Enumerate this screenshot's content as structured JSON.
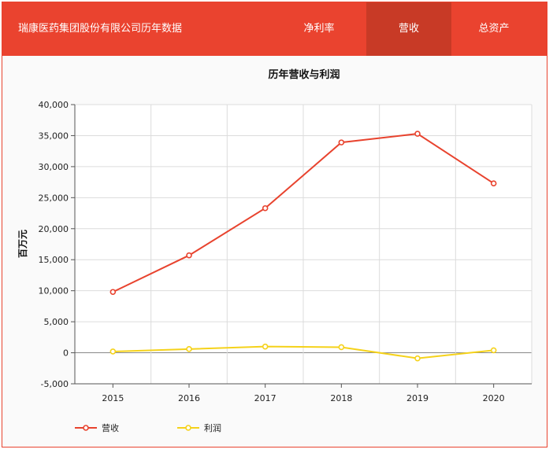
{
  "header": {
    "title": "瑞康医药集团股份有限公司历年数据",
    "tabs": [
      {
        "label": "净利率",
        "active": false
      },
      {
        "label": "营收",
        "active": true
      },
      {
        "label": "总资产",
        "active": false
      }
    ]
  },
  "colors": {
    "header_bg": "#ea432f",
    "active_tab_bg": "#c83a26",
    "revenue_line": "#e8432e",
    "profit_line": "#f5d21a"
  },
  "chart_data": {
    "type": "line",
    "title": "历年营收与利润",
    "xlabel": "",
    "ylabel": "百万元",
    "categories": [
      "2015",
      "2016",
      "2017",
      "2018",
      "2019",
      "2020"
    ],
    "ylim": [
      -5000,
      40000
    ],
    "yticks": [
      -5000,
      0,
      5000,
      10000,
      15000,
      20000,
      25000,
      30000,
      35000,
      40000
    ],
    "ytick_labels": [
      "-5,000",
      "0",
      "5,000",
      "10,000",
      "15,000",
      "20,000",
      "25,000",
      "30,000",
      "35,000",
      "40,000"
    ],
    "grid": true,
    "legend_position": "bottom-left",
    "series": [
      {
        "name": "营收",
        "color": "#e8432e",
        "values": [
          9800,
          15700,
          23300,
          33900,
          35300,
          27300
        ]
      },
      {
        "name": "利润",
        "color": "#f5d21a",
        "values": [
          200,
          600,
          1000,
          900,
          -900,
          400
        ]
      }
    ]
  }
}
